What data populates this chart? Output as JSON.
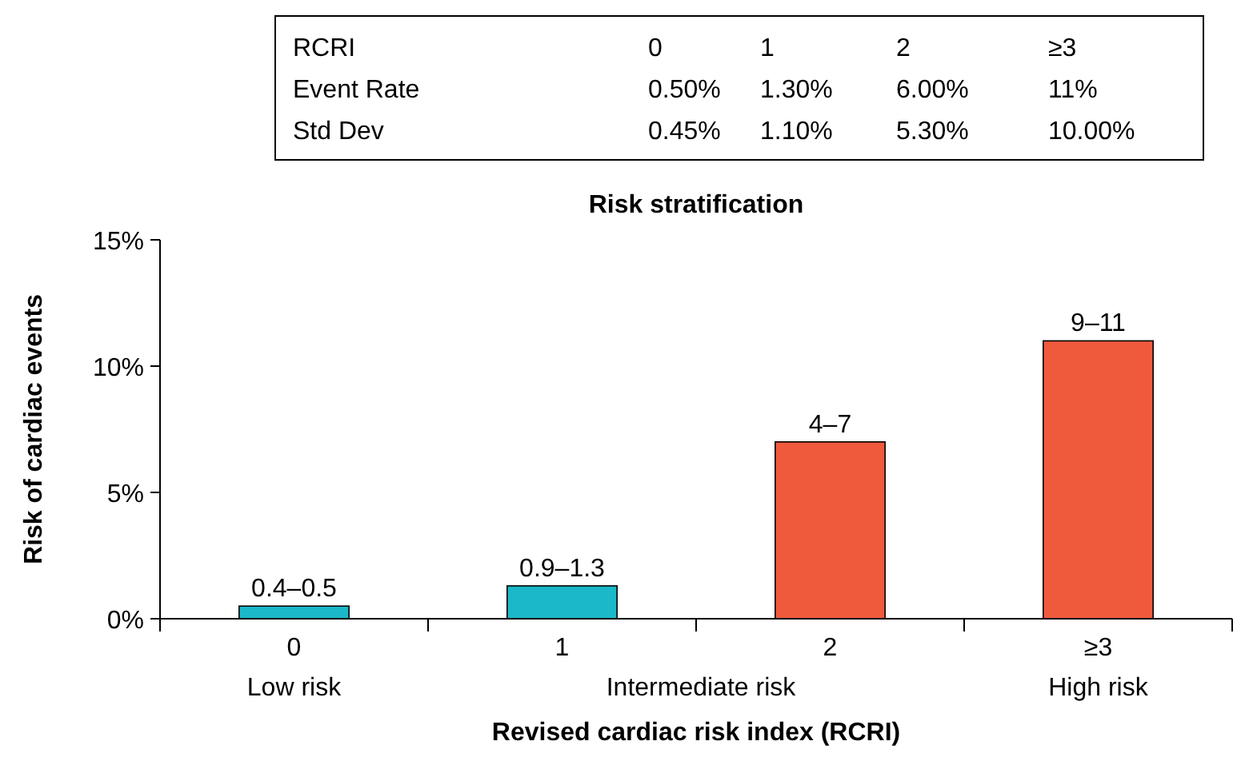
{
  "chart_data": [
    {
      "type": "other",
      "y_categories": [
        "RCRI",
        "Event Rate",
        "Std Dev"
      ],
      "cell_labels": [
        [
          "0",
          "1",
          "2",
          "≥3"
        ],
        [
          "0.50%",
          "1.30%",
          "6.00%",
          "11%"
        ],
        [
          "0.45%",
          "1.10%",
          "5.30%",
          "10.00%"
        ]
      ]
    },
    {
      "type": "bar",
      "title": "Risk stratification",
      "xlabel": "Revised cardiac risk index (RCRI)",
      "ylabel": "Risk of cardiac events",
      "categories": [
        "0",
        "1",
        "2",
        "≥3"
      ],
      "values": [
        0.5,
        1.3,
        7,
        11
      ],
      "colors": [
        "#1ab8c8",
        "#1ab8c8",
        "#ef5a3c",
        "#ef5a3c"
      ],
      "value_labels": [
        "0.4–0.5",
        "0.9–1.3",
        "4–7",
        "9–11"
      ],
      "ylim": [
        0,
        15
      ],
      "yticks": [
        {
          "value": 0,
          "label": "0%"
        },
        {
          "value": 5,
          "label": "5%"
        },
        {
          "value": 10,
          "label": "10%"
        },
        {
          "value": 15,
          "label": "15%"
        }
      ],
      "annotations": [
        "Low risk",
        "Intermediate risk",
        "High risk"
      ],
      "grid": false
    }
  ]
}
